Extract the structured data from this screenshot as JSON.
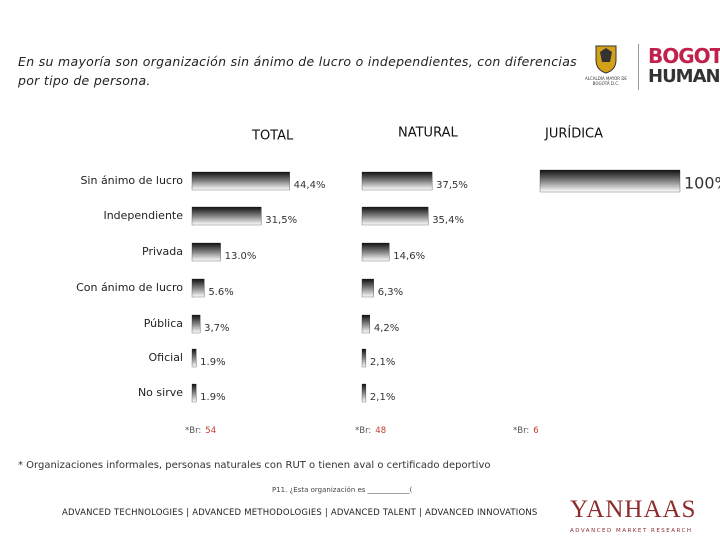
{
  "header": {
    "text": "En su mayoría son organización sin ánimo de lucro o independientes, con diferencias por tipo de persona.",
    "logo_1": "ALCALDÍA MAYOR DE BOGOTÁ D.C.",
    "logo_2_line1": "BOGOTÁ",
    "logo_2_line2": "HUMANA"
  },
  "chart_data": [
    {
      "type": "bar",
      "orientation": "horizontal",
      "title": "TOTAL",
      "categories": [
        "Sin ánimo de lucro",
        "Independiente",
        "Privada",
        "Con ánimo de lucro",
        "Pública",
        "Oficial",
        "No sirve"
      ],
      "values": [
        44.4,
        31.5,
        13.0,
        5.6,
        3.7,
        1.9,
        1.9
      ],
      "value_labels": [
        "44,4%",
        "31,5%",
        "13.0%",
        "5.6%",
        "3,7%",
        "1.9%",
        "1.9%"
      ],
      "xlim": [
        0,
        100
      ],
      "base_label": "*Br:",
      "base": 54,
      "color": "#222222"
    },
    {
      "type": "bar",
      "orientation": "horizontal",
      "title": "NATURAL",
      "values": [
        37.5,
        35.4,
        14.6,
        6.3,
        4.2,
        2.1,
        2.1
      ],
      "value_labels": [
        "37,5%",
        "35,4%",
        "14,6%",
        "6,3%",
        "4,2%",
        "2,1%",
        "2,1%"
      ],
      "xlim": [
        0,
        100
      ],
      "base_label": "*Br:",
      "base": 48,
      "color": "#222222"
    },
    {
      "type": "bar",
      "orientation": "horizontal",
      "title": "JURÍDICA",
      "values": [
        100,
        null,
        null,
        null,
        null,
        null,
        null
      ],
      "value_labels": [
        "100%",
        null,
        null,
        null,
        null,
        null,
        null
      ],
      "xlim": [
        0,
        100
      ],
      "base_label": "*Br:",
      "base": 6,
      "color": "#222222"
    }
  ],
  "footnote": "* Organizaciones informales, personas naturales con RUT o tienen aval o certificado deportivo",
  "question": "P11. ¿Esta organización es ____________(",
  "footer": "ADVANCED TECHNOLOGIES | ADVANCED METHODOLOGIES | ADVANCED TALENT | ADVANCED INNOVATIONS",
  "brand": "YANHAAS",
  "brand_tagline": "ADVANCED MARKET RESEARCH"
}
